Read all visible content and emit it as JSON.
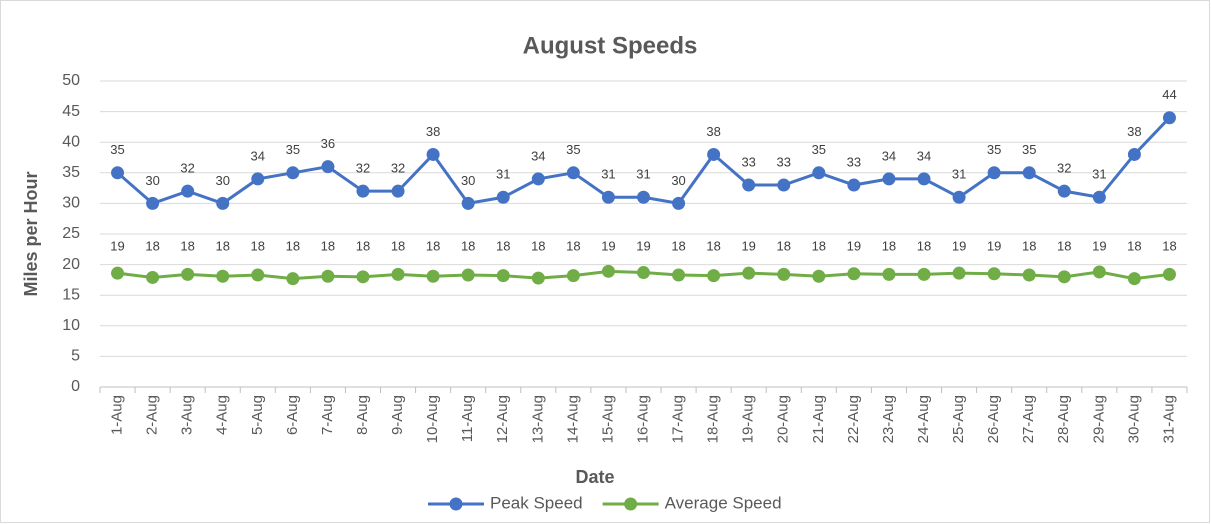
{
  "chart_data": {
    "type": "line",
    "title": "August Speeds",
    "x_label": "Date",
    "y_label": "Miles per Hour",
    "categories": [
      "1-Aug",
      "2-Aug",
      "3-Aug",
      "4-Aug",
      "5-Aug",
      "6-Aug",
      "7-Aug",
      "8-Aug",
      "9-Aug",
      "10-Aug",
      "11-Aug",
      "12-Aug",
      "13-Aug",
      "14-Aug",
      "15-Aug",
      "16-Aug",
      "17-Aug",
      "18-Aug",
      "19-Aug",
      "20-Aug",
      "21-Aug",
      "22-Aug",
      "23-Aug",
      "24-Aug",
      "25-Aug",
      "26-Aug",
      "27-Aug",
      "28-Aug",
      "29-Aug",
      "30-Aug",
      "31-Aug"
    ],
    "series": [
      {
        "name": "Peak Speed",
        "color": "#4472c4",
        "values": [
          35,
          30,
          32,
          30,
          34,
          35,
          36,
          32,
          32,
          38,
          30,
          31,
          34,
          35,
          31,
          31,
          30,
          38,
          33,
          33,
          35,
          33,
          34,
          34,
          31,
          35,
          35,
          32,
          31,
          38,
          44
        ]
      },
      {
        "name": "Average Speed",
        "color": "#70ad47",
        "values": [
          18.6,
          17.9,
          18.4,
          18.1,
          18.3,
          17.7,
          18.1,
          18.0,
          18.4,
          18.1,
          18.3,
          18.2,
          17.8,
          18.2,
          18.9,
          18.7,
          18.3,
          18.2,
          18.6,
          18.4,
          18.1,
          18.5,
          18.4,
          18.4,
          18.6,
          18.5,
          18.3,
          18.0,
          18.8,
          17.7,
          18.4
        ],
        "value_labels": [
          "19",
          "18",
          "18",
          "18",
          "18",
          "18",
          "18",
          "18",
          "18",
          "18",
          "18",
          "18",
          "18",
          "18",
          "19",
          "19",
          "18",
          "18",
          "19",
          "18",
          "18",
          "19",
          "18",
          "18",
          "19",
          "19",
          "18",
          "18",
          "19",
          "18",
          "18"
        ]
      }
    ],
    "ylim": [
      0,
      50
    ],
    "yticks": [
      0,
      5,
      10,
      15,
      20,
      25,
      30,
      35,
      40,
      45,
      50
    ],
    "grid": true,
    "legend": "bottom"
  }
}
